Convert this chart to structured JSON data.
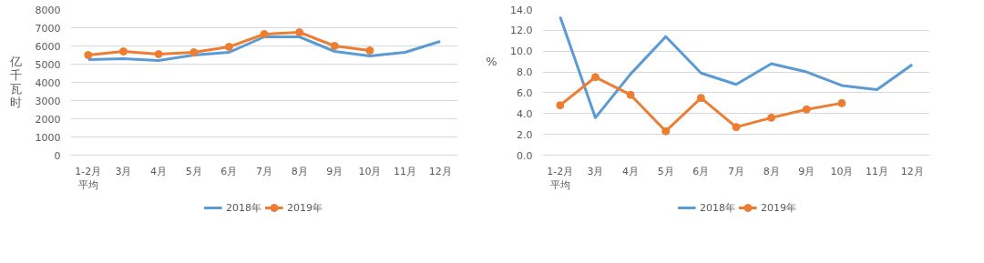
{
  "chart_data": [
    {
      "type": "line",
      "ylabel": "亿千瓦时",
      "categories": [
        "1-2月平均",
        "3月",
        "4月",
        "5月",
        "6月",
        "7月",
        "8月",
        "9月",
        "10月",
        "11月",
        "12月"
      ],
      "ylim": [
        0,
        8000
      ],
      "yticks": [
        0,
        1000,
        2000,
        3000,
        4000,
        5000,
        6000,
        7000,
        8000
      ],
      "grid": "y",
      "legend": "bottom",
      "series": [
        {
          "name": "2018年",
          "color": "#5b9bd5",
          "marker": "none",
          "values": [
            5250,
            5300,
            5200,
            5500,
            5650,
            6500,
            6500,
            5700,
            5450,
            5650,
            6250
          ]
        },
        {
          "name": "2019年",
          "color": "#ed7d31",
          "marker": "circle",
          "values": [
            5500,
            5700,
            5550,
            5650,
            5950,
            6650,
            6750,
            6000,
            5750,
            null,
            null
          ]
        }
      ]
    },
    {
      "type": "line",
      "ylabel": "%",
      "categories": [
        "1-2月平均",
        "3月",
        "4月",
        "5月",
        "6月",
        "7月",
        "8月",
        "9月",
        "10月",
        "11月",
        "12月"
      ],
      "ylim": [
        0,
        14
      ],
      "yticks": [
        {
          "value": 0,
          "label": "0.0"
        },
        {
          "value": 2,
          "label": "2.0"
        },
        {
          "value": 4,
          "label": "4.0"
        },
        {
          "value": 6,
          "label": "6.0"
        },
        {
          "value": 8,
          "label": "8.0"
        },
        {
          "value": 10,
          "label": "10.0"
        },
        {
          "value": 12,
          "label": "12.0"
        },
        {
          "value": 14,
          "label": "14.0"
        }
      ],
      "grid": "y",
      "legend": "bottom",
      "series": [
        {
          "name": "2018年",
          "color": "#5b9bd5",
          "marker": "none",
          "values": [
            13.3,
            3.6,
            7.8,
            11.4,
            7.9,
            6.8,
            8.8,
            8.0,
            6.7,
            6.3,
            8.7
          ]
        },
        {
          "name": "2019年",
          "color": "#ed7d31",
          "marker": "circle",
          "values": [
            4.8,
            7.5,
            5.8,
            2.3,
            5.5,
            2.7,
            3.6,
            4.4,
            5.0,
            null,
            null
          ]
        }
      ]
    }
  ]
}
